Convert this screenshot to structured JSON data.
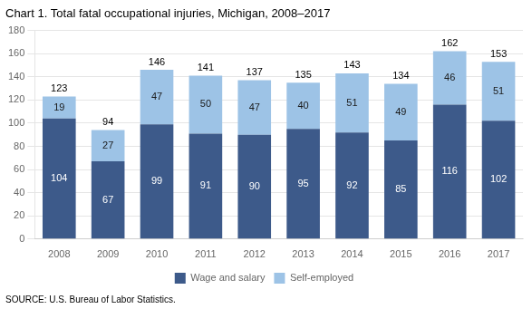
{
  "chart_data": {
    "type": "bar",
    "title": "Chart 1. Total fatal occupational injuries, Michigan, 2008–2017",
    "categories": [
      "2008",
      "2009",
      "2010",
      "2011",
      "2012",
      "2013",
      "2014",
      "2015",
      "2016",
      "2017"
    ],
    "series": [
      {
        "name": "Wage and salary",
        "color": "#3d5a8a",
        "values": [
          104,
          67,
          99,
          91,
          90,
          95,
          92,
          85,
          116,
          102
        ]
      },
      {
        "name": "Self-employed",
        "color": "#9dc3e6",
        "values": [
          19,
          27,
          47,
          50,
          47,
          40,
          51,
          49,
          46,
          51
        ]
      }
    ],
    "totals": [
      123,
      94,
      146,
      141,
      137,
      135,
      143,
      134,
      162,
      153
    ],
    "stacked": true,
    "data_labels": true,
    "ylim": [
      0,
      180
    ],
    "yticks": [
      0,
      20,
      40,
      60,
      80,
      100,
      120,
      140,
      160,
      180
    ],
    "grid": true,
    "legend": "bottom",
    "source": "SOURCE: U.S. Bureau of Labor Statistics."
  }
}
